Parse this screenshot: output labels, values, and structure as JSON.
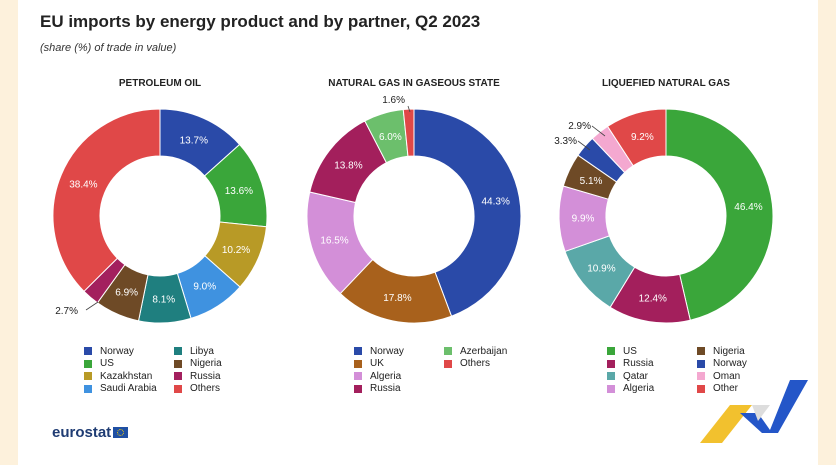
{
  "title": "EU imports by energy product and by partner, Q2 2023",
  "subtitle": "(share (%) of trade in value)",
  "logo_text": "eurostat",
  "chart_data": [
    {
      "type": "pie",
      "title": "PETROLEUM OIL",
      "slices": [
        {
          "name": "Norway",
          "value": 13.7,
          "label": "13.7%",
          "color": "#2a4aa8"
        },
        {
          "name": "US",
          "value": 13.6,
          "label": "13.6%",
          "color": "#3aa63a"
        },
        {
          "name": "Kazakhstan",
          "value": 10.2,
          "label": "10.2%",
          "color": "#b89a26"
        },
        {
          "name": "Saudi Arabia",
          "value": 9.0,
          "label": "9.0%",
          "color": "#3f92e0"
        },
        {
          "name": "Libya",
          "value": 8.1,
          "label": "8.1%",
          "color": "#1f7f7f"
        },
        {
          "name": "Nigeria",
          "value": 6.9,
          "label": "6.9%",
          "color": "#6e4a26"
        },
        {
          "name": "Russia",
          "value": 2.7,
          "label": "2.7%",
          "color": "#a3205e"
        },
        {
          "name": "Others",
          "value": 38.4,
          "label": "38.4%",
          "color": "#e04848"
        }
      ],
      "legend": [
        "Norway",
        "US",
        "Kazakhstan",
        "Saudi Arabia",
        "Libya",
        "Nigeria",
        "Russia",
        "Others"
      ]
    },
    {
      "type": "pie",
      "title": "NATURAL GAS IN GASEOUS STATE",
      "slices": [
        {
          "name": "Norway",
          "value": 44.3,
          "label": "44.3%",
          "color": "#2a4aa8"
        },
        {
          "name": "UK",
          "value": 17.8,
          "label": "17.8%",
          "color": "#a8611c"
        },
        {
          "name": "Algeria",
          "value": 16.5,
          "label": "16.5%",
          "color": "#d38fd8"
        },
        {
          "name": "Russia",
          "value": 13.8,
          "label": "13.8%",
          "color": "#a31f5c"
        },
        {
          "name": "Azerbaijan",
          "value": 6.0,
          "label": "6.0%",
          "color": "#6cbf6c"
        },
        {
          "name": "Others",
          "value": 1.6,
          "label": "1.6%",
          "color": "#e04848"
        }
      ],
      "legend": [
        "Norway",
        "UK",
        "Algeria",
        "Russia",
        "Azerbaijan",
        "Others"
      ]
    },
    {
      "type": "pie",
      "title": "LIQUEFIED NATURAL GAS",
      "slices": [
        {
          "name": "US",
          "value": 46.4,
          "label": "46.4%",
          "color": "#3aa63a"
        },
        {
          "name": "Russia",
          "value": 12.4,
          "label": "12.4%",
          "color": "#a31f5c"
        },
        {
          "name": "Qatar",
          "value": 10.9,
          "label": "10.9%",
          "color": "#5aa8a8"
        },
        {
          "name": "Algeria",
          "value": 9.9,
          "label": "9.9%",
          "color": "#d38fd8"
        },
        {
          "name": "Nigeria",
          "value": 5.1,
          "label": "5.1%",
          "color": "#6e4a26"
        },
        {
          "name": "Norway",
          "value": 3.3,
          "label": "3.3%",
          "color": "#2a4aa8"
        },
        {
          "name": "Oman",
          "value": 2.9,
          "label": "2.9%",
          "color": "#f4a8d0"
        },
        {
          "name": "Other",
          "value": 9.2,
          "label": "9.2%",
          "color": "#e04848"
        }
      ],
      "legend": [
        "US",
        "Russia",
        "Qatar",
        "Algeria",
        "Nigeria",
        "Norway",
        "Oman",
        "Other"
      ]
    }
  ]
}
